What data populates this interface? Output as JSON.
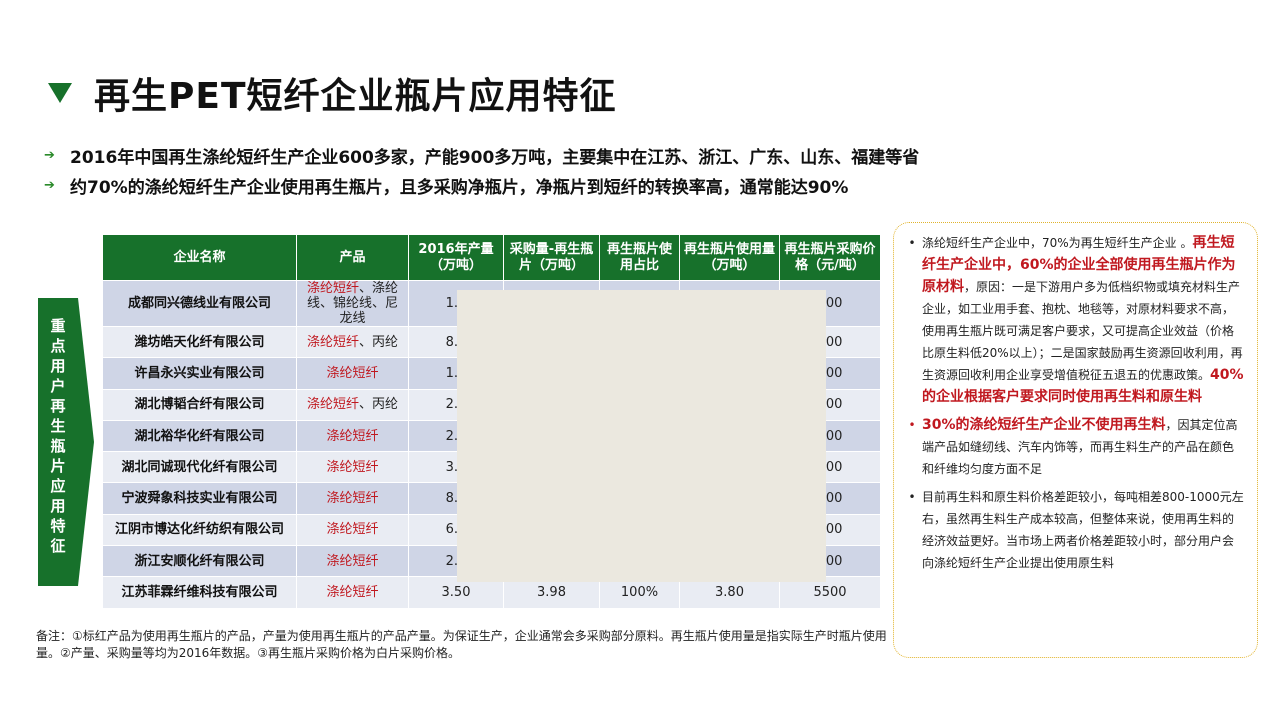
{
  "title": "再生PET短纤企业瓶片应用特征",
  "bullets": [
    "2016年中国再生涤纶短纤生产企业600多家，产能900多万吨，主要集中在江苏、浙江、广东、山东、福建等省",
    "约70%的涤纶短纤生产企业使用再生瓶片，且多采购净瓶片，净瓶片到短纤的转换率高，通常能达90%"
  ],
  "side_label": "重点用户再生瓶片应用特征",
  "table": {
    "headers": [
      "企业名称",
      "产品",
      "2016年产量（万吨）",
      "采购量-再生瓶片（万吨）",
      "再生瓶片使用占比",
      "再生瓶片使用量（万吨）",
      "再生瓶片采购价格（元/吨）"
    ],
    "rows": [
      {
        "company": "成都同兴德线业有限公司",
        "product_red": "涤纶短纤",
        "product_rest": "、涤纶线、锦纶线、尼龙线",
        "output": "1.2",
        "purchase": "",
        "share": "",
        "usage": "",
        "price": "000"
      },
      {
        "company": "潍坊皓天化纤有限公司",
        "product_red": "涤纶短纤",
        "product_rest": "、丙纶",
        "output": "8.0",
        "purchase": "",
        "share": "",
        "usage": "",
        "price": "500"
      },
      {
        "company": "许昌永兴实业有限公司",
        "product_red": "涤纶短纤",
        "product_rest": "",
        "output": "1.3",
        "purchase": "",
        "share": "",
        "usage": "",
        "price": "000"
      },
      {
        "company": "湖北博韬合纤有限公司",
        "product_red": "涤纶短纤",
        "product_rest": "、丙纶",
        "output": "2.0",
        "purchase": "",
        "share": "",
        "usage": "",
        "price": "500"
      },
      {
        "company": "湖北裕华化纤有限公司",
        "product_red": "涤纶短纤",
        "product_rest": "",
        "output": "2.0",
        "purchase": "",
        "share": "",
        "usage": "",
        "price": "500"
      },
      {
        "company": "湖北同诚现代化纤有限公司",
        "product_red": "涤纶短纤",
        "product_rest": "",
        "output": "3.0",
        "purchase": "",
        "share": "",
        "usage": "",
        "price": "500"
      },
      {
        "company": "宁波舜象科技实业有限公司",
        "product_red": "涤纶短纤",
        "product_rest": "",
        "output": "8.0",
        "purchase": "",
        "share": "",
        "usage": "",
        "price": "800"
      },
      {
        "company": "江阴市博达化纤纺织有限公司",
        "product_red": "涤纶短纤",
        "product_rest": "",
        "output": "6.5",
        "purchase": "",
        "share": "",
        "usage": "",
        "price": "500"
      },
      {
        "company": "浙江安顺化纤有限公司",
        "product_red": "涤纶短纤",
        "product_rest": "",
        "output": "2.0",
        "purchase": "",
        "share": "",
        "usage": "",
        "price": "800"
      },
      {
        "company": "江苏菲霖纤维科技有限公司",
        "product_red": "涤纶短纤",
        "product_rest": "",
        "output": "3.50",
        "purchase": "3.98",
        "share": "100%",
        "usage": "3.80",
        "price": "5500"
      }
    ]
  },
  "note": "备注：①标红产品为使用再生瓶片的产品，产量为使用再生瓶片的产品产量。为保证生产，企业通常会多采购部分原料。再生瓶片使用量是指实际生产时瓶片使用量。②产量、采购量等均为2016年数据。③再生瓶片采购价格为白片采购价格。",
  "panel": {
    "item1": {
      "t1": "涤纶短纤生产企业中，70%为再生短纤生产企业 。",
      "e1": "再生短纤生产企业中，60%的企业全部使用再生瓶片作为原材料",
      "t2": "，原因：一是下游用户多为低档织物或填充材料生产企业，如工业用手套、抱枕、地毯等，对原材料要求不高，使用再生瓶片既可满足客户要求，又可提高企业效益（价格比原生料低20%以上）；二是国家鼓励再生资源回收利用，再生资源回收利用企业享受增值税征五退五的优惠政策。",
      "e2": "40%的企业根据客户要求同时使用再生料和原生料"
    },
    "item2": {
      "e1": "30%的涤纶短纤生产企业不使用再生料",
      "t1": "，因其定位高端产品如缝纫线、汽车内饰等，而再生料生产的产品在颜色和纤维均匀度方面不足"
    },
    "item3": {
      "t1": "目前再生料和原生料价格差距较小，每吨相差800-1000元左右，虽然再生料生产成本较高，但整体来说，使用再生料的经济效益更好。当市场上两者价格差距较小时，部分用户会向涤纶短纤生产企业提出使用原生料"
    }
  },
  "colors": {
    "brand_green": "#17712b",
    "emphasis_red": "#c0181f",
    "panel_border": "#e1b32c"
  }
}
